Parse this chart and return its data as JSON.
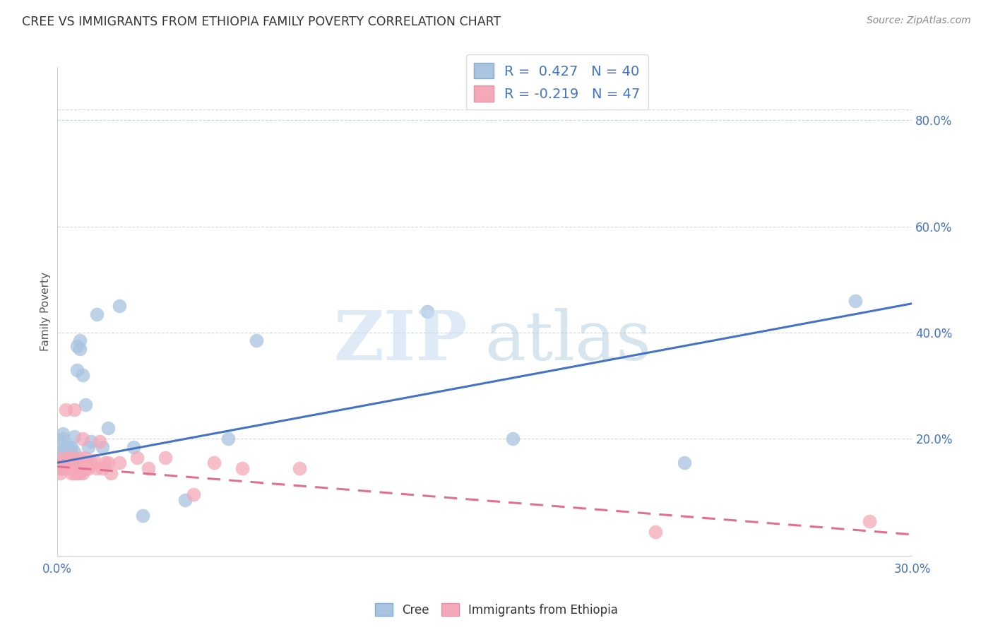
{
  "title": "CREE VS IMMIGRANTS FROM ETHIOPIA FAMILY POVERTY CORRELATION CHART",
  "source": "Source: ZipAtlas.com",
  "ylabel": "Family Poverty",
  "right_yticks": [
    "80.0%",
    "60.0%",
    "40.0%",
    "20.0%"
  ],
  "right_ytick_vals": [
    0.8,
    0.6,
    0.4,
    0.2
  ],
  "xlim": [
    0.0,
    0.3
  ],
  "ylim": [
    -0.02,
    0.9
  ],
  "cree_color": "#a8c4e0",
  "ethiopia_color": "#f4a8b8",
  "cree_line_color": "#4472c4",
  "ethiopia_line_color": "#e07090",
  "cree_R": 0.427,
  "cree_N": 40,
  "ethiopia_R": -0.219,
  "ethiopia_N": 47,
  "cree_line_x0": 0.0,
  "cree_line_y0": 0.155,
  "cree_line_x1": 0.3,
  "cree_line_y1": 0.455,
  "ethiopia_line_x0": 0.0,
  "ethiopia_line_y0": 0.148,
  "ethiopia_line_x1": 0.3,
  "ethiopia_line_y1": 0.02,
  "cree_x": [
    0.001,
    0.001,
    0.001,
    0.002,
    0.002,
    0.002,
    0.002,
    0.003,
    0.003,
    0.003,
    0.003,
    0.004,
    0.004,
    0.004,
    0.005,
    0.005,
    0.005,
    0.006,
    0.006,
    0.007,
    0.007,
    0.008,
    0.008,
    0.009,
    0.01,
    0.011,
    0.012,
    0.014,
    0.016,
    0.018,
    0.022,
    0.027,
    0.03,
    0.045,
    0.06,
    0.07,
    0.13,
    0.16,
    0.22,
    0.28
  ],
  "cree_y": [
    0.145,
    0.175,
    0.195,
    0.155,
    0.175,
    0.2,
    0.21,
    0.155,
    0.17,
    0.175,
    0.185,
    0.165,
    0.175,
    0.185,
    0.155,
    0.165,
    0.185,
    0.175,
    0.205,
    0.33,
    0.375,
    0.37,
    0.385,
    0.32,
    0.265,
    0.185,
    0.195,
    0.435,
    0.185,
    0.22,
    0.45,
    0.185,
    0.055,
    0.085,
    0.2,
    0.385,
    0.44,
    0.2,
    0.155,
    0.46
  ],
  "ethiopia_x": [
    0.001,
    0.001,
    0.001,
    0.002,
    0.002,
    0.002,
    0.003,
    0.003,
    0.003,
    0.004,
    0.004,
    0.004,
    0.005,
    0.005,
    0.005,
    0.005,
    0.006,
    0.006,
    0.006,
    0.007,
    0.007,
    0.007,
    0.008,
    0.008,
    0.009,
    0.009,
    0.01,
    0.01,
    0.011,
    0.012,
    0.013,
    0.014,
    0.015,
    0.016,
    0.017,
    0.018,
    0.019,
    0.022,
    0.028,
    0.032,
    0.038,
    0.048,
    0.055,
    0.065,
    0.085,
    0.21,
    0.285
  ],
  "ethiopia_y": [
    0.135,
    0.145,
    0.155,
    0.145,
    0.155,
    0.165,
    0.145,
    0.155,
    0.255,
    0.145,
    0.155,
    0.165,
    0.135,
    0.145,
    0.155,
    0.165,
    0.135,
    0.145,
    0.255,
    0.135,
    0.145,
    0.155,
    0.135,
    0.165,
    0.135,
    0.2,
    0.145,
    0.165,
    0.145,
    0.155,
    0.16,
    0.145,
    0.195,
    0.145,
    0.155,
    0.155,
    0.135,
    0.155,
    0.165,
    0.145,
    0.165,
    0.095,
    0.155,
    0.145,
    0.145,
    0.025,
    0.045
  ]
}
